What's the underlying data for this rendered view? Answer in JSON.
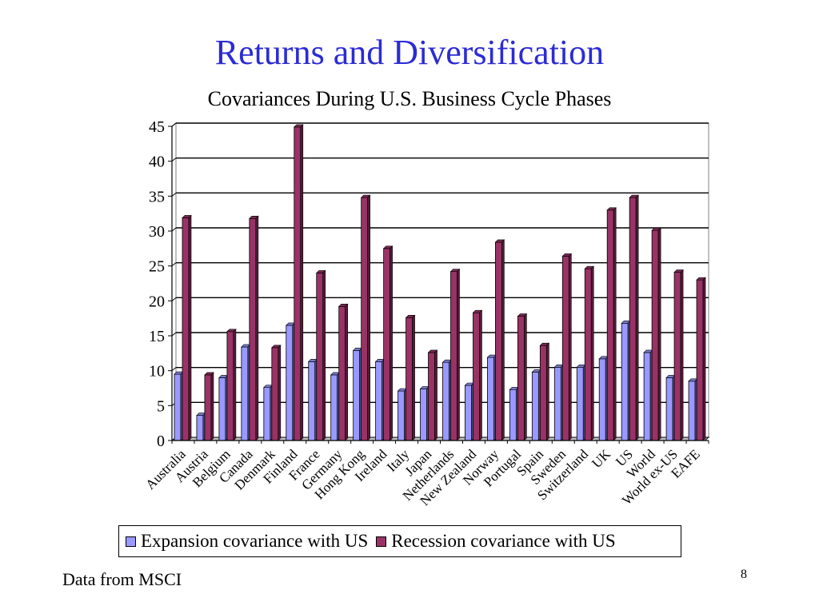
{
  "slide": {
    "title": "Returns and Diversification",
    "source_note": "Data from MSCI",
    "page_number": "8"
  },
  "colors": {
    "title": "#2b2bd6",
    "expansion": "#9999ff",
    "recession": "#993366"
  },
  "chart_data": {
    "type": "bar",
    "title": "Covariances During U.S. Business Cycle Phases",
    "xlabel": "",
    "ylabel": "",
    "ylim": [
      0,
      45
    ],
    "yticks": [
      0,
      5,
      10,
      15,
      20,
      25,
      30,
      35,
      40,
      45
    ],
    "grid": true,
    "legend_position": "bottom",
    "style": "3d-bar",
    "categories": [
      "Australia",
      "Austria",
      "Belgium",
      "Canada",
      "Denmark",
      "Finland",
      "France",
      "Germany",
      "Hong Kong",
      "Ireland",
      "Italy",
      "Japan",
      "Netherlands",
      "New Zealand",
      "Norway",
      "Portugal",
      "Spain",
      "Sweden",
      "Switzerland",
      "UK",
      "US",
      "World",
      "World ex-US",
      "EAFE"
    ],
    "series": [
      {
        "name": "Expansion covariance with US",
        "values": [
          9.5,
          3.6,
          9.0,
          13.4,
          7.6,
          16.5,
          11.3,
          9.4,
          12.9,
          11.3,
          7.1,
          7.4,
          11.2,
          7.9,
          11.9,
          7.3,
          9.8,
          10.5,
          10.5,
          11.7,
          16.8,
          12.6,
          9.0,
          8.5
        ]
      },
      {
        "name": "Recession covariance with US",
        "values": [
          31.9,
          9.4,
          15.6,
          31.8,
          13.3,
          44.9,
          24.0,
          19.2,
          34.8,
          27.5,
          17.6,
          12.6,
          24.2,
          18.3,
          28.4,
          17.8,
          13.6,
          26.4,
          24.6,
          33.0,
          34.8,
          30.1,
          24.1,
          23.0
        ]
      }
    ]
  }
}
